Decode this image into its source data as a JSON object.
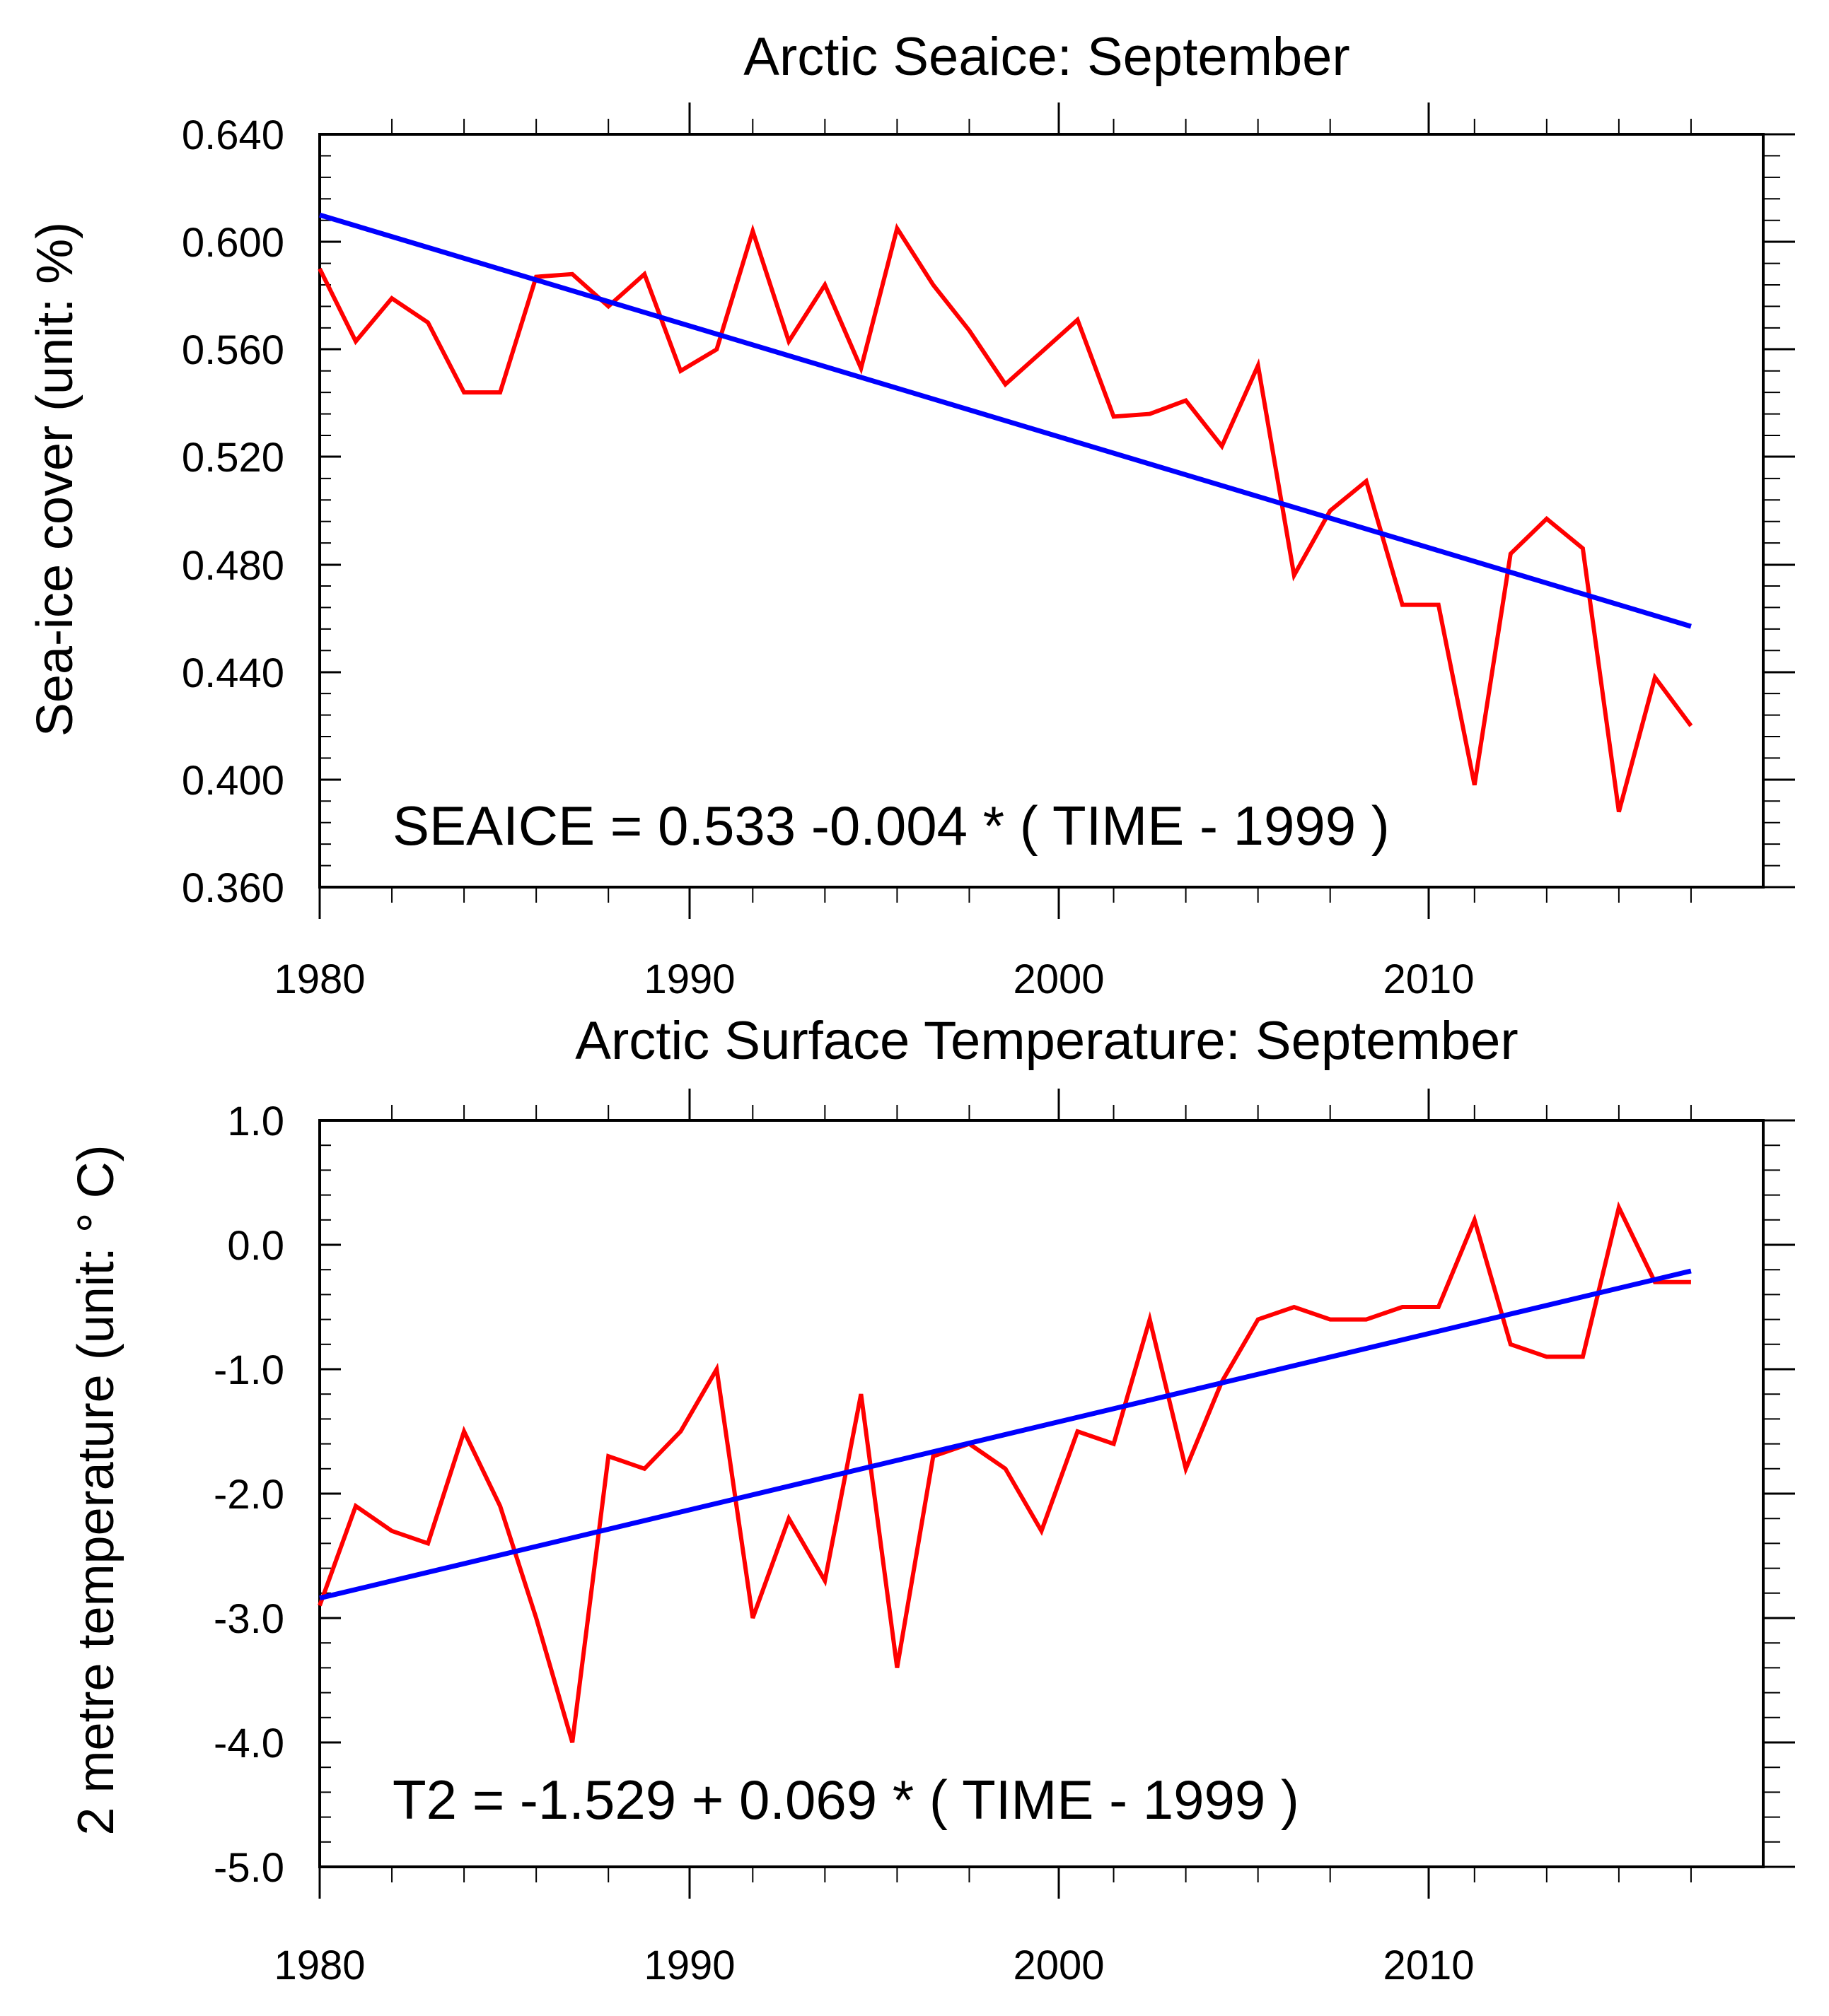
{
  "chart_data": [
    {
      "type": "line",
      "title": "Arctic Seaice: September",
      "xlabel": "",
      "ylabel": "Sea-ice cover  (unit: %)",
      "xlim": [
        1980,
        2020
      ],
      "ylim": [
        0.36,
        0.64
      ],
      "xticks": [
        1980,
        1990,
        2000,
        2010
      ],
      "xtick_labels": [
        "1980",
        "1990",
        "2000",
        "2010"
      ],
      "yticks": [
        0.36,
        0.4,
        0.44,
        0.48,
        0.52,
        0.56,
        0.6,
        0.64
      ],
      "ytick_labels": [
        "0.360",
        "0.400",
        "0.440",
        "0.480",
        "0.520",
        "0.560",
        "0.600",
        "0.640"
      ],
      "annotation": "SEAICE =  0.533  -0.004 * ( TIME - 1999 )",
      "x": [
        1980,
        1981,
        1982,
        1983,
        1984,
        1985,
        1986,
        1987,
        1988,
        1989,
        1990,
        1991,
        1992,
        1993,
        1994,
        1995,
        1996,
        1997,
        1998,
        1999,
        2000,
        2001,
        2002,
        2003,
        2004,
        2005,
        2006,
        2007,
        2008,
        2009,
        2010,
        2011,
        2012,
        2013,
        2014,
        2015,
        2016,
        2017,
        2018
      ],
      "series": [
        {
          "name": "Sea-ice cover",
          "color": "#ff0000",
          "values": [
            0.59,
            0.563,
            0.579,
            0.57,
            0.544,
            0.544,
            0.587,
            0.588,
            0.576,
            0.588,
            0.552,
            0.56,
            0.604,
            0.563,
            0.584,
            0.553,
            0.605,
            0.584,
            0.567,
            0.547,
            0.559,
            0.571,
            0.535,
            0.536,
            0.541,
            0.524,
            0.554,
            0.476,
            0.5,
            0.511,
            0.465,
            0.465,
            0.398,
            0.484,
            0.497,
            0.486,
            0.388,
            0.438,
            0.42
          ]
        },
        {
          "name": "Linear trend",
          "color": "#0000ff",
          "x": [
            1980,
            2018
          ],
          "values": [
            0.61,
            0.457
          ]
        }
      ]
    },
    {
      "type": "line",
      "title": "Arctic Surface Temperature: September",
      "xlabel": "",
      "ylabel": "2 metre temperature  (unit:  ° C)",
      "xlim": [
        1980,
        2020
      ],
      "ylim": [
        -5.0,
        1.0
      ],
      "xticks": [
        1980,
        1990,
        2000,
        2010
      ],
      "xtick_labels": [
        "1980",
        "1990",
        "2000",
        "2010"
      ],
      "yticks": [
        -5.0,
        -4.0,
        -3.0,
        -2.0,
        -1.0,
        0.0,
        1.0
      ],
      "ytick_labels": [
        "-5.0",
        "-4.0",
        "-3.0",
        "-2.0",
        "-1.0",
        "0.0",
        "1.0"
      ],
      "annotation": "T2 = -1.529 +  0.069 * ( TIME - 1999 )",
      "x": [
        1980,
        1981,
        1982,
        1983,
        1984,
        1985,
        1986,
        1987,
        1988,
        1989,
        1990,
        1991,
        1992,
        1993,
        1994,
        1995,
        1996,
        1997,
        1998,
        1999,
        2000,
        2001,
        2002,
        2003,
        2004,
        2005,
        2006,
        2007,
        2008,
        2009,
        2010,
        2011,
        2012,
        2013,
        2014,
        2015,
        2016,
        2017,
        2018
      ],
      "series": [
        {
          "name": "2 metre temperature",
          "color": "#ff0000",
          "values": [
            -2.9,
            -2.1,
            -2.3,
            -2.4,
            -1.5,
            -2.1,
            -3.0,
            -4.0,
            -1.7,
            -1.8,
            -1.5,
            -1.0,
            -3.0,
            -2.2,
            -2.7,
            -1.2,
            -3.4,
            -1.7,
            -1.6,
            -1.8,
            -2.3,
            -1.5,
            -1.6,
            -0.6,
            -1.8,
            -1.1,
            -0.6,
            -0.5,
            -0.6,
            -0.6,
            -0.5,
            -0.5,
            0.2,
            -0.8,
            -0.9,
            -0.9,
            0.3,
            -0.3,
            -0.3
          ]
        },
        {
          "name": "Linear trend",
          "color": "#0000ff",
          "x": [
            1980,
            2018
          ],
          "values": [
            -2.84,
            -0.21
          ]
        }
      ]
    }
  ]
}
